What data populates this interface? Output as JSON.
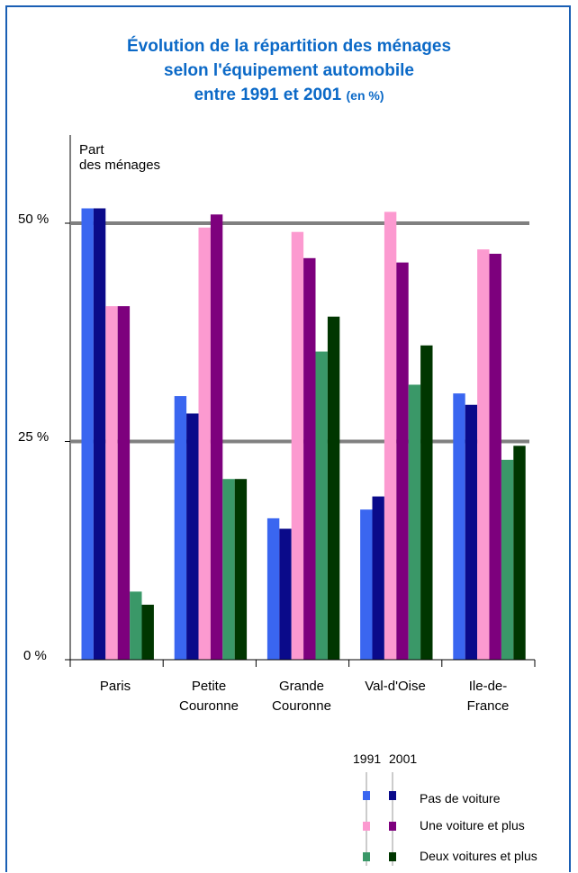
{
  "title": {
    "line1": "Évolution de la répartition des ménages",
    "line2": "selon l'équipement automobile",
    "line3_main": "entre 1991 et 2001",
    "line3_small": "(en %)"
  },
  "y_axis_title_line1": "Part",
  "y_axis_title_line2": "des ménages",
  "y_ticks": [
    "0 %",
    "25 %",
    "50 %"
  ],
  "legend": {
    "year_1991": "1991",
    "year_2001": "2001",
    "rows": [
      "Pas de voiture",
      "Une voiture et plus",
      "Deux voitures et plus"
    ]
  },
  "chart_data": {
    "type": "bar",
    "title": "Évolution de la répartition des ménages selon l'équipement automobile entre 1991 et 2001 (en %)",
    "ylabel": "Part des ménages",
    "ylim": [
      0,
      60
    ],
    "yticks": [
      0,
      25,
      50
    ],
    "grid": "horizontal lines at 25 and 50",
    "legend_position": "bottom-right",
    "categories": [
      "Paris",
      "Petite\nCouronne",
      "Grande\nCouronne",
      "Val-d'Oise",
      "Ile-de-\nFrance"
    ],
    "series": [
      {
        "name": "Pas de voiture 1991",
        "color": "#3a66f0",
        "values": [
          51.7,
          30.2,
          16.2,
          17.2,
          30.5
        ]
      },
      {
        "name": "Pas de voiture 2001",
        "color": "#0a0a8a",
        "values": [
          51.7,
          28.2,
          15.0,
          18.7,
          29.2
        ]
      },
      {
        "name": "Une voiture et plus 1991",
        "color": "#fc9ad0",
        "values": [
          40.5,
          49.5,
          49.0,
          51.3,
          47.0
        ]
      },
      {
        "name": "Une voiture et plus 2001",
        "color": "#7d007d",
        "values": [
          40.5,
          51.0,
          46.0,
          45.5,
          46.5
        ]
      },
      {
        "name": "Deux voitures et plus 1991",
        "color": "#3a9868",
        "values": [
          7.8,
          20.7,
          35.3,
          31.5,
          22.9
        ]
      },
      {
        "name": "Deux voitures et plus 2001",
        "color": "#003600",
        "values": [
          6.3,
          20.7,
          39.3,
          36.0,
          24.5
        ]
      }
    ]
  }
}
